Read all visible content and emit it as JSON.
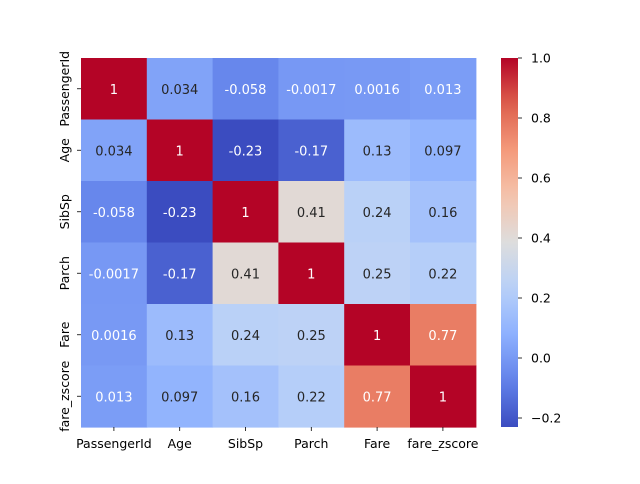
{
  "chart_data": {
    "type": "heatmap",
    "title": "",
    "xlabel": "",
    "ylabel": "",
    "x_categories": [
      "PassengerId",
      "Age",
      "SibSp",
      "Parch",
      "Fare",
      "fare_zscore"
    ],
    "y_categories": [
      "PassengerId",
      "Age",
      "SibSp",
      "Parch",
      "Fare",
      "fare_zscore"
    ],
    "values": [
      [
        1,
        0.034,
        -0.058,
        -0.0017,
        0.0016,
        0.013
      ],
      [
        0.034,
        1,
        -0.23,
        -0.17,
        0.13,
        0.097
      ],
      [
        -0.058,
        -0.23,
        1,
        0.41,
        0.24,
        0.16
      ],
      [
        -0.0017,
        -0.17,
        0.41,
        1,
        0.25,
        0.22
      ],
      [
        0.0016,
        0.13,
        0.24,
        0.25,
        1,
        0.77
      ],
      [
        0.013,
        0.097,
        0.16,
        0.22,
        0.77,
        1
      ]
    ],
    "colormap": "coolwarm",
    "vmin": -0.23,
    "vmax": 1,
    "annotations": true,
    "colorbar": {
      "ticks": [
        -0.2,
        0.0,
        0.2,
        0.4,
        0.6,
        0.8,
        1.0
      ],
      "tick_labels": [
        "−0.2",
        "0.0",
        "0.2",
        "0.4",
        "0.6",
        "0.8",
        "1.0"
      ],
      "placement": "right"
    }
  }
}
